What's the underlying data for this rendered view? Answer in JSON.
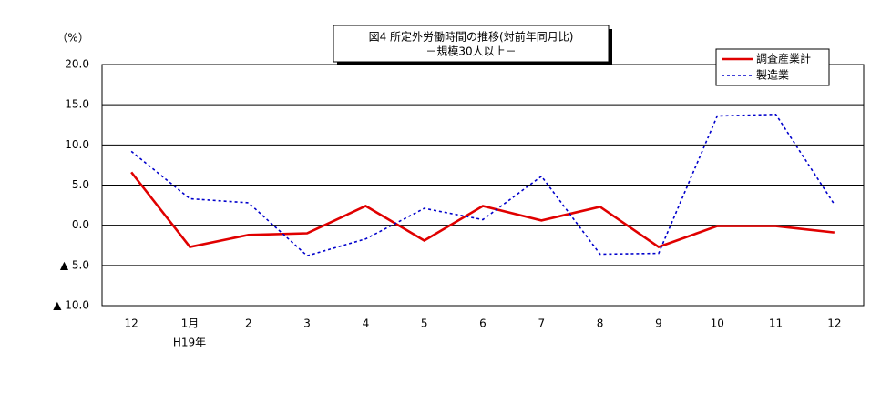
{
  "chart_data": {
    "type": "line",
    "title": "図4  所定外労働時間の推移(対前年同月比)",
    "subtitle": "－規模30人以上－",
    "ylabel": "（%）",
    "annotations": [
      "H19年"
    ],
    "categories": [
      "12",
      "1月",
      "2",
      "3",
      "4",
      "5",
      "6",
      "7",
      "8",
      "9",
      "10",
      "11",
      "12"
    ],
    "series": [
      {
        "name": "調査産業計",
        "color": "#e00000",
        "style": "solid",
        "values": [
          6.6,
          -2.7,
          -1.2,
          -1.0,
          2.4,
          -1.9,
          2.4,
          0.6,
          2.3,
          -2.7,
          -0.1,
          -0.1,
          -0.9
        ]
      },
      {
        "name": "製造業",
        "color": "#0000cc",
        "style": "dotted",
        "values": [
          9.2,
          3.3,
          2.8,
          -3.8,
          -1.7,
          2.1,
          0.7,
          6.1,
          -3.6,
          -3.5,
          13.6,
          13.8,
          2.6
        ]
      }
    ],
    "ylim": [
      -10,
      20
    ],
    "yticks": [
      {
        "value": -10,
        "label": "▲ 10.0"
      },
      {
        "value": -5,
        "label": "▲ 5.0"
      },
      {
        "value": 0,
        "label": "0.0"
      },
      {
        "value": 5,
        "label": "5.0"
      },
      {
        "value": 10,
        "label": "10.0"
      },
      {
        "value": 15,
        "label": "15.0"
      },
      {
        "value": 20,
        "label": "20.0"
      }
    ],
    "grid": true,
    "legend": "top-right"
  }
}
